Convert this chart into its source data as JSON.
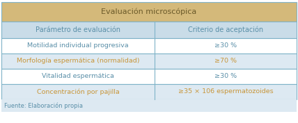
{
  "title": "Evaluación microscópica",
  "header": [
    "Parámetro de evaluación",
    "Criterio de aceptación"
  ],
  "rows": [
    [
      "Motilidad individual progresiva",
      "≥30 %"
    ],
    [
      "Morfología espermática (normalidad)",
      "≥70 %"
    ],
    [
      "Vitalidad espermática",
      "≥30 %"
    ],
    [
      "Concentración por pajilla",
      "≥35 × 106 espermatozoides"
    ]
  ],
  "footer": "Fuente: Elaboración propia",
  "title_bg": "#D4B97A",
  "header_bg": "#C9DCE8",
  "row_bg_odd": "#FFFFFF",
  "row_bg_even": "#DDE9F2",
  "footer_bg": "#DDE9F2",
  "title_color": "#6B5A2A",
  "header_color": "#5A8FA8",
  "row_color_odd": "#5A8FA8",
  "row_color_even": "#C8963A",
  "border_color": "#7FB3C8",
  "footer_color": "#5A8FA8",
  "figsize": [
    4.28,
    1.77
  ],
  "dpi": 100
}
